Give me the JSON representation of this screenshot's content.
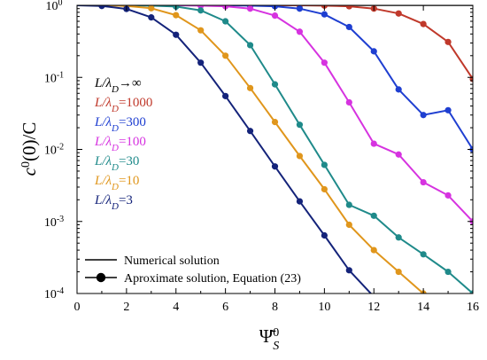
{
  "chart_data": {
    "type": "line",
    "y_scale": "log",
    "xlim": [
      0,
      16
    ],
    "ylim": [
      0.0001,
      1
    ],
    "grid": false,
    "xlabel": {
      "main": "Ψ̄",
      "sup": "0",
      "sub": "S"
    },
    "ylabel": {
      "pre": "c",
      "sup": "0",
      "post": "(0)/C"
    },
    "x_ticks": [
      "0",
      "2",
      "4",
      "6",
      "8",
      "10",
      "12",
      "14",
      "16"
    ],
    "y_ticks": [
      {
        "value": 1,
        "base": "10",
        "exp": "0"
      },
      {
        "value": 0.1,
        "base": "10",
        "exp": "-1"
      },
      {
        "value": 0.01,
        "base": "10",
        "exp": "-2"
      },
      {
        "value": 0.001,
        "base": "10",
        "exp": "-3"
      },
      {
        "value": 0.0001,
        "base": "10",
        "exp": "-4"
      }
    ],
    "series": [
      {
        "name": {
          "pre": "L/λ",
          "sub": "D",
          "post": "→∞"
        },
        "color": "#000000",
        "x": [
          0,
          16
        ],
        "y": [
          1,
          1
        ],
        "markers": false
      },
      {
        "name": {
          "pre": "L/λ",
          "sub": "D",
          "post": "=1000"
        },
        "color": "#c0392b",
        "x": [
          0,
          1,
          2,
          3,
          4,
          5,
          6,
          7,
          8,
          9,
          10,
          11,
          12,
          13,
          14,
          15,
          16
        ],
        "y": [
          1,
          1,
          1,
          1,
          1,
          1,
          1,
          1,
          1,
          1,
          0.99,
          0.97,
          0.9,
          0.77,
          0.55,
          0.31,
          0.095
        ],
        "markers": true
      },
      {
        "name": {
          "pre": "L/λ",
          "sub": "D",
          "post": "=300"
        },
        "color": "#1f3fd1",
        "x": [
          0,
          1,
          2,
          3,
          4,
          5,
          6,
          7,
          8,
          9,
          10,
          11,
          12,
          13,
          14,
          15,
          16
        ],
        "y": [
          1,
          1,
          1,
          1,
          1,
          1,
          1,
          0.99,
          0.97,
          0.9,
          0.75,
          0.5,
          0.23,
          0.068,
          0.03,
          0.035,
          0.01
        ],
        "markers": true
      },
      {
        "name": {
          "pre": "L/λ",
          "sub": "D",
          "post": "=100"
        },
        "color": "#d633e0",
        "x": [
          0,
          1,
          2,
          3,
          4,
          5,
          6,
          7,
          8,
          9,
          10,
          11,
          12,
          13,
          14,
          15,
          16
        ],
        "y": [
          1,
          1,
          1,
          1,
          1,
          0.99,
          0.97,
          0.9,
          0.72,
          0.43,
          0.16,
          0.045,
          0.012,
          0.0085,
          0.0035,
          0.0023,
          0.001
        ],
        "markers": true
      },
      {
        "name": {
          "pre": "L/λ",
          "sub": "D",
          "post": "=30"
        },
        "color": "#1f8a8a",
        "x": [
          0,
          1,
          2,
          3,
          4,
          5,
          6,
          7,
          8,
          9,
          10,
          11,
          12,
          13,
          14,
          15,
          16
        ],
        "y": [
          1,
          1,
          1,
          0.99,
          0.96,
          0.85,
          0.6,
          0.28,
          0.08,
          0.022,
          0.0061,
          0.0017,
          0.0012,
          0.0006,
          0.00035,
          0.0002,
          0.0001
        ],
        "markers": true
      },
      {
        "name": {
          "pre": "L/λ",
          "sub": "D",
          "post": "=10"
        },
        "color": "#e0961c",
        "x": [
          0,
          1,
          2,
          3,
          4,
          5,
          6,
          7,
          8,
          9,
          10,
          11,
          12,
          13,
          14
        ],
        "y": [
          1,
          1,
          0.98,
          0.91,
          0.73,
          0.45,
          0.2,
          0.071,
          0.024,
          0.0081,
          0.0028,
          0.0009,
          0.0004,
          0.0002,
          0.0001
        ],
        "markers": true
      },
      {
        "name": {
          "pre": "L/λ",
          "sub": "D",
          "post": "=3"
        },
        "color": "#14237a",
        "x": [
          0,
          1,
          2,
          3,
          4,
          5,
          6,
          7,
          8,
          9,
          10,
          11,
          12
        ],
        "y": [
          1,
          0.98,
          0.89,
          0.68,
          0.39,
          0.16,
          0.055,
          0.018,
          0.0058,
          0.0019,
          0.00064,
          0.00021,
          9e-05
        ],
        "markers": true
      }
    ],
    "legend": {
      "placement": "bottom-left",
      "entries": [
        {
          "label": "Numerical solution",
          "style": "line"
        },
        {
          "label": "Aproximate solution, Equation (23)",
          "style": "line-marker"
        }
      ]
    }
  }
}
